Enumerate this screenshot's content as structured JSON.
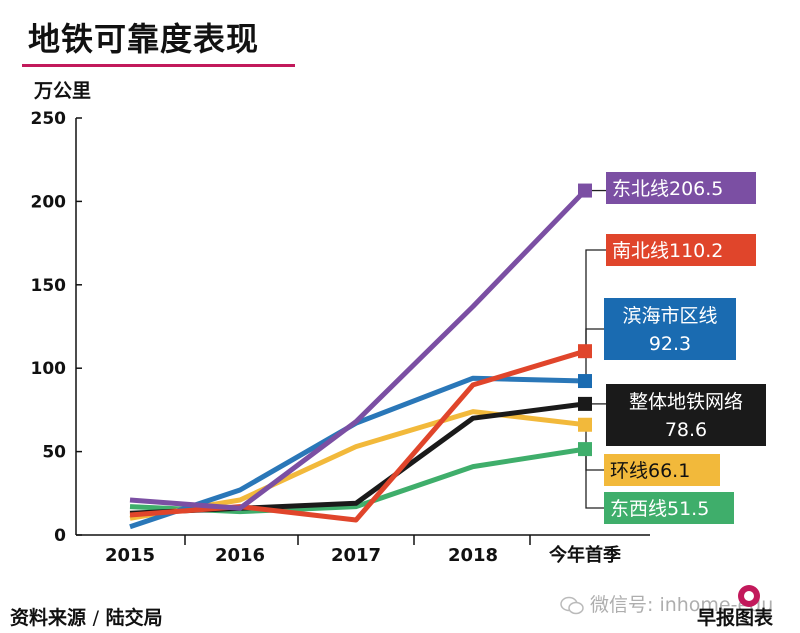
{
  "header": {
    "title": "地铁可靠度表现",
    "unit": "万公里"
  },
  "footer": {
    "source_label": "资料来源",
    "source_sep": "/",
    "source_name": "陆交局",
    "watermark": "微信号: inhome-edu",
    "brand": "早报图表"
  },
  "colors": {
    "title_rule": "#c2195b"
  },
  "chart_data": {
    "type": "line",
    "title": "地铁可靠度表现",
    "ylabel": "万公里",
    "xlabel": "",
    "categories": [
      "2015",
      "2016",
      "2017",
      "2018",
      "今年首季"
    ],
    "yticks": [
      0,
      50,
      100,
      150,
      200,
      250
    ],
    "ylim": [
      0,
      250
    ],
    "grid": false,
    "series": [
      {
        "name": "东北线",
        "label": "东北线206.5",
        "color": "#7b4fa3",
        "marker": "#7b4fa3",
        "x": [
          0,
          1,
          2,
          3,
          4
        ],
        "values": [
          21,
          16,
          68,
          137,
          206.5
        ]
      },
      {
        "name": "南北线",
        "label": "南北线110.2",
        "color": "#e0452b",
        "marker": "#e0452b",
        "x": [
          0,
          1,
          2,
          3,
          4
        ],
        "values": [
          12,
          17,
          9,
          90,
          110.2
        ]
      },
      {
        "name": "滨海市区线",
        "label": "滨海市区线92.3",
        "color": "#2a77b8",
        "marker": "#1a6bb1",
        "x": [
          0,
          1,
          2,
          3,
          4
        ],
        "values": [
          5,
          27,
          67,
          94,
          92.3
        ]
      },
      {
        "name": "整体地铁网络",
        "label": "整体地铁网络78.6",
        "color": "#1a1a1a",
        "marker": "#1a1a1a",
        "x": [
          0,
          1,
          2,
          3,
          4
        ],
        "values": [
          13,
          16,
          19,
          70,
          78.6
        ]
      },
      {
        "name": "环线",
        "label": "环线66.1",
        "color": "#f2b93b",
        "marker": "#f2b93b",
        "x": [
          0,
          1,
          2,
          3,
          4
        ],
        "values": [
          10,
          21,
          53,
          74,
          66.1
        ]
      },
      {
        "name": "东西线",
        "label": "东西线51.5",
        "color": "#3fae6b",
        "marker": "#3fae6b",
        "x": [
          0,
          1,
          2,
          3,
          4
        ],
        "values": [
          17,
          14,
          17,
          41,
          51.5
        ]
      }
    ],
    "legend_labels": [
      {
        "lines": [
          "东北线206.5"
        ],
        "bg": "#7b4fa3",
        "color": "#ffffff"
      },
      {
        "lines": [
          "南北线110.2"
        ],
        "bg": "#e0452b",
        "color": "#ffffff"
      },
      {
        "lines": [
          "滨海市区线",
          "92.3"
        ],
        "bg": "#1a6bb1",
        "color": "#ffffff"
      },
      {
        "lines": [
          "整体地铁网络",
          "78.6"
        ],
        "bg": "#1a1a1a",
        "color": "#ffffff"
      },
      {
        "lines": [
          "环线66.1"
        ],
        "bg": "#f2b93b",
        "color": "#111111"
      },
      {
        "lines": [
          "东西线51.5"
        ],
        "bg": "#3fae6b",
        "color": "#ffffff"
      }
    ]
  }
}
